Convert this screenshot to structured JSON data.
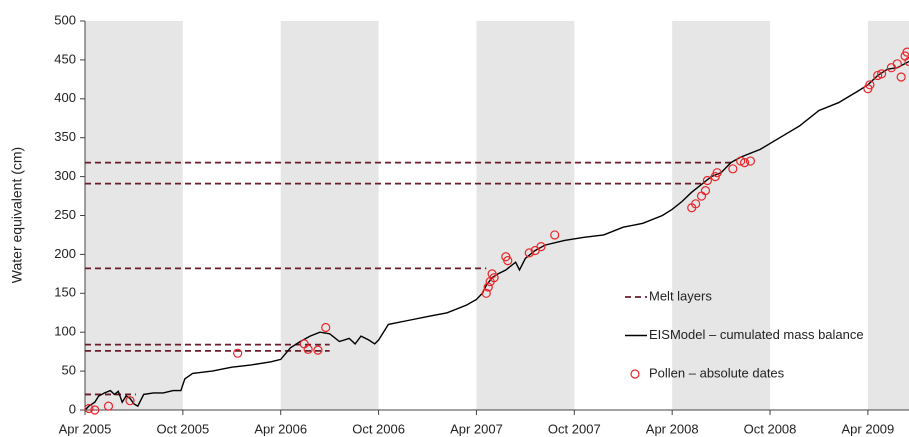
{
  "chart_data": {
    "type": "line",
    "y_label": "Water equivalent (cm)",
    "xlim": [
      2005.25,
      2009.46
    ],
    "xticks": [
      {
        "value": 2005.25,
        "label": "Apr 2005"
      },
      {
        "value": 2005.75,
        "label": "Oct 2005"
      },
      {
        "value": 2006.25,
        "label": "Apr 2006"
      },
      {
        "value": 2006.75,
        "label": "Oct 2006"
      },
      {
        "value": 2007.25,
        "label": "Apr 2007"
      },
      {
        "value": 2007.75,
        "label": "Oct 2007"
      },
      {
        "value": 2008.25,
        "label": "Apr 2008"
      },
      {
        "value": 2008.75,
        "label": "Oct 2008"
      },
      {
        "value": 2009.25,
        "label": "Apr 2009"
      }
    ],
    "ylim": [
      0,
      500
    ],
    "yticks": [
      0,
      50,
      100,
      150,
      200,
      250,
      300,
      350,
      400,
      450,
      500
    ],
    "grid": false,
    "shaded_periods": [
      [
        2005.25,
        2005.75
      ],
      [
        2006.25,
        2006.75
      ],
      [
        2007.25,
        2007.75
      ],
      [
        2008.25,
        2008.75
      ],
      [
        2009.25,
        2009.46
      ]
    ],
    "shade_color": "#e6e6e6",
    "legend": "right",
    "series": [
      {
        "name": "Melt layers",
        "color": "#6b1c2a",
        "style": "dashed",
        "values": [
          20,
          76,
          84,
          182,
          291,
          318
        ],
        "x_end": [
          2005.51,
          2006.5,
          2006.5,
          2007.3,
          2008.42,
          2008.55
        ]
      },
      {
        "name": "EISModel – cumulated mass balance",
        "color": "#000000",
        "style": "solid",
        "x": [
          2005.25,
          2005.27,
          2005.3,
          2005.32,
          2005.35,
          2005.38,
          2005.4,
          2005.42,
          2005.44,
          2005.46,
          2005.48,
          2005.5,
          2005.52,
          2005.55,
          2005.6,
          2005.65,
          2005.7,
          2005.74,
          2005.76,
          2005.8,
          2005.9,
          2006.0,
          2006.1,
          2006.2,
          2006.25,
          2006.3,
          2006.35,
          2006.4,
          2006.45,
          2006.5,
          2006.55,
          2006.6,
          2006.63,
          2006.66,
          2006.7,
          2006.73,
          2006.75,
          2006.8,
          2006.9,
          2007.0,
          2007.1,
          2007.2,
          2007.25,
          2007.28,
          2007.3,
          2007.33,
          2007.36,
          2007.4,
          2007.45,
          2007.47,
          2007.5,
          2007.55,
          2007.6,
          2007.7,
          2007.8,
          2007.9,
          2008.0,
          2008.1,
          2008.2,
          2008.25,
          2008.3,
          2008.35,
          2008.4,
          2008.45,
          2008.5,
          2008.55,
          2008.6,
          2008.7,
          2008.8,
          2008.9,
          2009.0,
          2009.1,
          2009.2,
          2009.25,
          2009.3,
          2009.35,
          2009.4,
          2009.46
        ],
        "values": [
          0,
          5,
          10,
          18,
          22,
          25,
          20,
          24,
          10,
          18,
          15,
          8,
          5,
          20,
          22,
          22,
          25,
          25,
          40,
          47,
          50,
          55,
          58,
          62,
          65,
          80,
          88,
          95,
          100,
          98,
          88,
          92,
          85,
          95,
          90,
          85,
          90,
          110,
          115,
          120,
          125,
          135,
          142,
          150,
          160,
          170,
          175,
          180,
          190,
          180,
          195,
          205,
          212,
          218,
          222,
          225,
          235,
          240,
          250,
          258,
          268,
          280,
          290,
          300,
          305,
          318,
          325,
          335,
          350,
          365,
          385,
          395,
          410,
          418,
          430,
          438,
          440,
          448
        ]
      },
      {
        "name": "Pollen – absolute dates",
        "color": "#e8262a",
        "style": "marker",
        "x": [
          2005.27,
          2005.3,
          2005.37,
          2005.48,
          2006.03,
          2006.37,
          2006.39,
          2006.44,
          2006.48,
          2007.3,
          2007.31,
          2007.32,
          2007.33,
          2007.34,
          2007.4,
          2007.41,
          2007.52,
          2007.55,
          2007.58,
          2007.65,
          2008.35,
          2008.37,
          2008.4,
          2008.42,
          2008.43,
          2008.47,
          2008.48,
          2008.56,
          2008.6,
          2008.62,
          2008.65,
          2009.25,
          2009.26,
          2009.3,
          2009.32,
          2009.37,
          2009.4,
          2009.42,
          2009.44,
          2009.45,
          2009.46
        ],
        "values": [
          2,
          0,
          5,
          12,
          73,
          85,
          78,
          77,
          106,
          150,
          158,
          165,
          175,
          170,
          197,
          192,
          202,
          205,
          210,
          225,
          260,
          265,
          275,
          282,
          295,
          300,
          305,
          310,
          320,
          318,
          320,
          413,
          418,
          430,
          432,
          440,
          445,
          428,
          455,
          460,
          448
        ]
      }
    ]
  }
}
